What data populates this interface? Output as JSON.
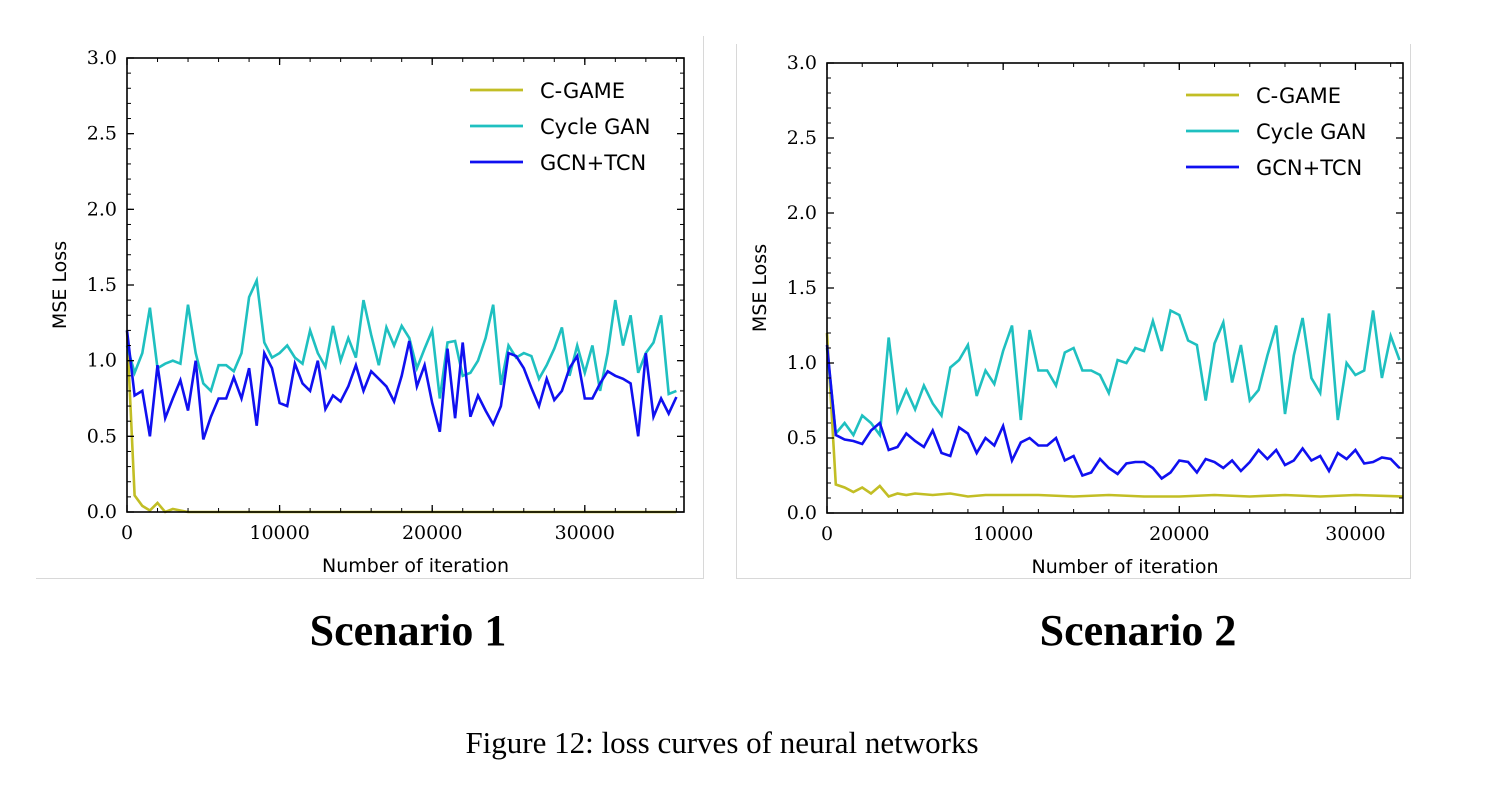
{
  "figure": {
    "caption": "Figure 12: loss curves of neural networks",
    "panel_titles": [
      "Scenario 1",
      "Scenario 2"
    ]
  },
  "chart_data": [
    {
      "type": "line",
      "xlabel": "Number of iteration",
      "ylabel": "MSE Loss",
      "xlim": [
        0,
        36500
      ],
      "ylim": [
        0,
        3.0
      ],
      "xticks": [
        0,
        10000,
        20000,
        30000
      ],
      "yticks": [
        0.0,
        0.5,
        1.0,
        1.5,
        2.0,
        2.5,
        3.0
      ],
      "xtick_labels": [
        "0",
        "10000",
        "20000",
        "30000"
      ],
      "ytick_labels": [
        "0.0",
        "0.5",
        "1.0",
        "1.5",
        "2.0",
        "2.5",
        "3.0"
      ],
      "grid": false,
      "legend_position": "top-right",
      "series": [
        {
          "name": "C-GAME",
          "color": "#c2be25",
          "x": [
            0,
            500,
            1000,
            1500,
            2000,
            2500,
            3000,
            3500,
            4000,
            5000,
            7500,
            10000,
            15000,
            20000,
            25000,
            30000,
            36000
          ],
          "y": [
            1.2,
            0.11,
            0.04,
            0.01,
            0.06,
            0.0,
            0.02,
            0.01,
            0.0,
            0.0,
            0.0,
            0.0,
            0.0,
            0.0,
            0.0,
            0.0,
            0.0
          ]
        },
        {
          "name": "Cycle GAN",
          "color": "#1fc0c0",
          "x": [
            0,
            500,
            1000,
            1500,
            2000,
            2500,
            3000,
            3500,
            4000,
            4500,
            5000,
            5500,
            6000,
            6500,
            7000,
            7500,
            8000,
            8500,
            9000,
            9500,
            10000,
            10500,
            11000,
            11500,
            12000,
            12500,
            13000,
            13500,
            14000,
            14500,
            15000,
            15500,
            16000,
            16500,
            17000,
            17500,
            18000,
            18500,
            19000,
            19500,
            20000,
            20500,
            21000,
            21500,
            22000,
            22500,
            23000,
            23500,
            24000,
            24500,
            25000,
            25500,
            26000,
            26500,
            27000,
            27500,
            28000,
            28500,
            29000,
            29500,
            30000,
            30500,
            31000,
            31500,
            32000,
            32500,
            33000,
            33500,
            34000,
            34500,
            35000,
            35500,
            36000
          ],
          "y": [
            1.1,
            0.92,
            1.05,
            1.35,
            0.95,
            0.98,
            1.0,
            0.98,
            1.37,
            1.05,
            0.85,
            0.8,
            0.97,
            0.97,
            0.93,
            1.05,
            1.42,
            1.53,
            1.12,
            1.02,
            1.05,
            1.1,
            1.02,
            0.98,
            1.2,
            1.05,
            0.96,
            1.23,
            1.0,
            1.15,
            1.02,
            1.4,
            1.17,
            0.97,
            1.22,
            1.1,
            1.23,
            1.15,
            0.95,
            1.08,
            1.2,
            0.75,
            1.12,
            1.13,
            0.9,
            0.92,
            1.0,
            1.15,
            1.37,
            0.84,
            1.1,
            1.02,
            1.05,
            1.03,
            0.88,
            0.97,
            1.08,
            1.22,
            0.9,
            1.1,
            0.92,
            1.1,
            0.8,
            1.05,
            1.4,
            1.1,
            1.3,
            0.92,
            1.05,
            1.12,
            1.3,
            0.78,
            0.8
          ]
        },
        {
          "name": "GCN+TCN",
          "color": "#1010f0",
          "x": [
            0,
            500,
            1000,
            1500,
            2000,
            2500,
            3000,
            3500,
            4000,
            4500,
            5000,
            5500,
            6000,
            6500,
            7000,
            7500,
            8000,
            8500,
            9000,
            9500,
            10000,
            10500,
            11000,
            11500,
            12000,
            12500,
            13000,
            13500,
            14000,
            14500,
            15000,
            15500,
            16000,
            16500,
            17000,
            17500,
            18000,
            18500,
            19000,
            19500,
            20000,
            20500,
            21000,
            21500,
            22000,
            22500,
            23000,
            23500,
            24000,
            24500,
            25000,
            25500,
            26000,
            26500,
            27000,
            27500,
            28000,
            28500,
            29000,
            29500,
            30000,
            30500,
            31000,
            31500,
            32000,
            32500,
            33000,
            33500,
            34000,
            34500,
            35000,
            35500,
            36000
          ],
          "y": [
            1.2,
            0.77,
            0.8,
            0.5,
            0.97,
            0.62,
            0.75,
            0.87,
            0.67,
            1.0,
            0.48,
            0.63,
            0.75,
            0.75,
            0.89,
            0.75,
            0.95,
            0.57,
            1.05,
            0.95,
            0.72,
            0.7,
            0.98,
            0.85,
            0.8,
            1.0,
            0.68,
            0.77,
            0.73,
            0.83,
            0.97,
            0.8,
            0.93,
            0.88,
            0.83,
            0.73,
            0.9,
            1.13,
            0.83,
            0.97,
            0.72,
            0.53,
            1.08,
            0.62,
            1.12,
            0.63,
            0.77,
            0.67,
            0.58,
            0.7,
            1.05,
            1.03,
            0.95,
            0.82,
            0.7,
            0.88,
            0.74,
            0.8,
            0.95,
            1.03,
            0.75,
            0.75,
            0.85,
            0.93,
            0.9,
            0.88,
            0.85,
            0.5,
            1.05,
            0.63,
            0.75,
            0.65,
            0.76
          ]
        }
      ]
    },
    {
      "type": "line",
      "xlabel": "Number of iteration",
      "ylabel": "MSE Loss",
      "xlim": [
        0,
        32700
      ],
      "ylim": [
        0,
        3.0
      ],
      "xticks": [
        0,
        10000,
        20000,
        30000
      ],
      "yticks": [
        0.0,
        0.5,
        1.0,
        1.5,
        2.0,
        2.5,
        3.0
      ],
      "xtick_labels": [
        "0",
        "10000",
        "20000",
        "30000"
      ],
      "ytick_labels": [
        "0.0",
        "0.5",
        "1.0",
        "1.5",
        "2.0",
        "2.5",
        "3.0"
      ],
      "grid": false,
      "legend_position": "top-right",
      "series": [
        {
          "name": "C-GAME",
          "color": "#c2be25",
          "x": [
            0,
            500,
            1000,
            1500,
            2000,
            2500,
            3000,
            3500,
            4000,
            4500,
            5000,
            6000,
            7000,
            8000,
            9000,
            10000,
            12000,
            14000,
            16000,
            18000,
            20000,
            22000,
            24000,
            26000,
            28000,
            30000,
            32700
          ],
          "y": [
            1.2,
            0.19,
            0.17,
            0.14,
            0.17,
            0.13,
            0.18,
            0.11,
            0.13,
            0.12,
            0.13,
            0.12,
            0.13,
            0.11,
            0.12,
            0.12,
            0.12,
            0.11,
            0.12,
            0.11,
            0.11,
            0.12,
            0.11,
            0.12,
            0.11,
            0.12,
            0.11
          ]
        },
        {
          "name": "Cycle GAN",
          "color": "#1fc0c0",
          "x": [
            0,
            500,
            1000,
            1500,
            2000,
            2500,
            3000,
            3500,
            4000,
            4500,
            5000,
            5500,
            6000,
            6500,
            7000,
            7500,
            8000,
            8500,
            9000,
            9500,
            10000,
            10500,
            11000,
            11500,
            12000,
            12500,
            13000,
            13500,
            14000,
            14500,
            15000,
            15500,
            16000,
            16500,
            17000,
            17500,
            18000,
            18500,
            19000,
            19500,
            20000,
            20500,
            21000,
            21500,
            22000,
            22500,
            23000,
            23500,
            24000,
            24500,
            25000,
            25500,
            26000,
            26500,
            27000,
            27500,
            28000,
            28500,
            29000,
            29500,
            30000,
            30500,
            31000,
            31500,
            32000,
            32500
          ],
          "y": [
            1.1,
            0.53,
            0.6,
            0.52,
            0.65,
            0.6,
            0.52,
            1.17,
            0.68,
            0.82,
            0.69,
            0.85,
            0.73,
            0.65,
            0.97,
            1.02,
            1.12,
            0.78,
            0.95,
            0.86,
            1.08,
            1.25,
            0.62,
            1.22,
            0.95,
            0.95,
            0.85,
            1.07,
            1.1,
            0.95,
            0.95,
            0.92,
            0.8,
            1.02,
            1.0,
            1.1,
            1.08,
            1.28,
            1.08,
            1.35,
            1.32,
            1.15,
            1.12,
            0.75,
            1.13,
            1.27,
            0.87,
            1.12,
            0.75,
            0.82,
            1.05,
            1.25,
            0.66,
            1.05,
            1.3,
            0.9,
            0.8,
            1.33,
            0.62,
            1.0,
            0.92,
            0.95,
            1.35,
            0.9,
            1.18,
            1.02
          ]
        },
        {
          "name": "GCN+TCN",
          "color": "#1010f0",
          "x": [
            0,
            500,
            1000,
            1500,
            2000,
            2500,
            3000,
            3500,
            4000,
            4500,
            5000,
            5500,
            6000,
            6500,
            7000,
            7500,
            8000,
            8500,
            9000,
            9500,
            10000,
            10500,
            11000,
            11500,
            12000,
            12500,
            13000,
            13500,
            14000,
            14500,
            15000,
            15500,
            16000,
            16500,
            17000,
            17500,
            18000,
            18500,
            19000,
            19500,
            20000,
            20500,
            21000,
            21500,
            22000,
            22500,
            23000,
            23500,
            24000,
            24500,
            25000,
            25500,
            26000,
            26500,
            27000,
            27500,
            28000,
            28500,
            29000,
            29500,
            30000,
            30500,
            31000,
            31500,
            32000,
            32500
          ],
          "y": [
            1.12,
            0.52,
            0.49,
            0.48,
            0.46,
            0.55,
            0.6,
            0.42,
            0.44,
            0.53,
            0.48,
            0.44,
            0.55,
            0.4,
            0.38,
            0.57,
            0.53,
            0.4,
            0.5,
            0.45,
            0.58,
            0.35,
            0.47,
            0.5,
            0.45,
            0.45,
            0.5,
            0.35,
            0.38,
            0.25,
            0.27,
            0.36,
            0.3,
            0.26,
            0.33,
            0.34,
            0.34,
            0.3,
            0.23,
            0.27,
            0.35,
            0.34,
            0.27,
            0.36,
            0.34,
            0.3,
            0.35,
            0.28,
            0.34,
            0.42,
            0.36,
            0.42,
            0.32,
            0.35,
            0.43,
            0.35,
            0.38,
            0.28,
            0.4,
            0.36,
            0.42,
            0.33,
            0.34,
            0.37,
            0.36,
            0.3
          ]
        }
      ]
    }
  ]
}
